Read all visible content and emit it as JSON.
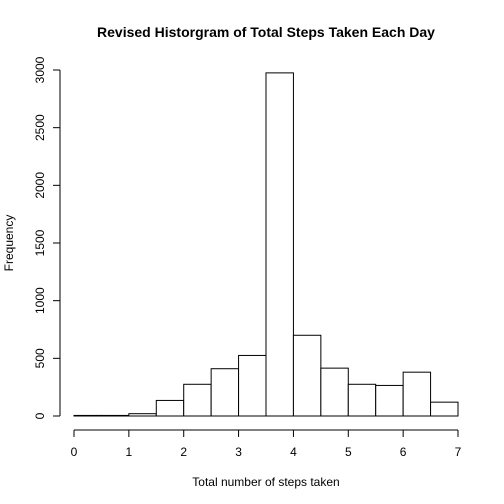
{
  "chart_data": {
    "type": "bar",
    "title": "Revised Historgram of Total Steps Taken Each Day",
    "xlabel": "Total number of steps taken",
    "ylabel": "Frequency",
    "bin_edges": [
      0,
      0.5,
      1,
      1.5,
      2,
      2.5,
      3,
      3.5,
      4,
      4.5,
      5,
      5.5,
      6,
      6.5,
      7
    ],
    "values": [
      5,
      5,
      20,
      135,
      275,
      410,
      525,
      2975,
      700,
      415,
      275,
      265,
      380,
      120
    ],
    "xlim": [
      0,
      7
    ],
    "ylim": [
      0,
      3000
    ],
    "x_ticks": [
      "0",
      "1",
      "2",
      "3",
      "4",
      "5",
      "6",
      "7"
    ],
    "y_ticks": [
      "0",
      "500",
      "1000",
      "1500",
      "2000",
      "2500",
      "3000"
    ],
    "grid": false,
    "colors": {
      "bar_fill": "#ffffff",
      "bar_stroke": "#000000",
      "axis": "#000000",
      "text": "#000000"
    }
  }
}
